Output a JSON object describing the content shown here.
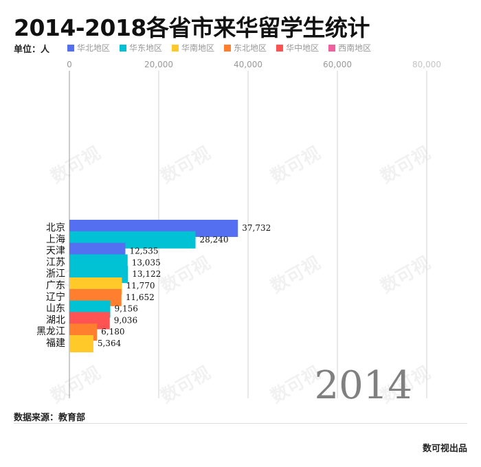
{
  "title": "2014-2018各省市来华留学生统计",
  "unit_label": "单位：人",
  "legend": [
    {
      "label": "华北地区",
      "color": "#5470f0"
    },
    {
      "label": "华东地区",
      "color": "#00c2d4"
    },
    {
      "label": "华南地区",
      "color": "#ffc929"
    },
    {
      "label": "东北地区",
      "color": "#ff7f2e"
    },
    {
      "label": "华中地区",
      "color": "#ff5252"
    },
    {
      "label": "西南地区",
      "color": "#f0609e"
    }
  ],
  "source": "数据来源：教育部",
  "brand": "数可视出品",
  "chart_data": {
    "type": "bar",
    "orientation": "horizontal",
    "year": "2014",
    "xlim": [
      0,
      80000
    ],
    "x_ticks": [
      "0",
      "20,000",
      "40,000",
      "60,000",
      "80,000"
    ],
    "grid": true,
    "categories": [
      "北京",
      "上海",
      "天津",
      "江苏",
      "浙江",
      "广东",
      "辽宁",
      "山东",
      "湖北",
      "黑龙江",
      "福建"
    ],
    "values": [
      37732,
      28240,
      12535,
      13035,
      13122,
      11770,
      11652,
      9156,
      9036,
      6180,
      5364
    ],
    "value_labels": [
      "37,732",
      "28,240",
      "12,535",
      "13,035",
      "13,122",
      "11,770",
      "11,652",
      "9,156",
      "9,036",
      "6,180",
      "5,364"
    ],
    "regions": [
      "华北地区",
      "华东地区",
      "华北地区",
      "华东地区",
      "华东地区",
      "华南地区",
      "东北地区",
      "华东地区",
      "华中地区",
      "东北地区",
      "华南地区"
    ]
  }
}
